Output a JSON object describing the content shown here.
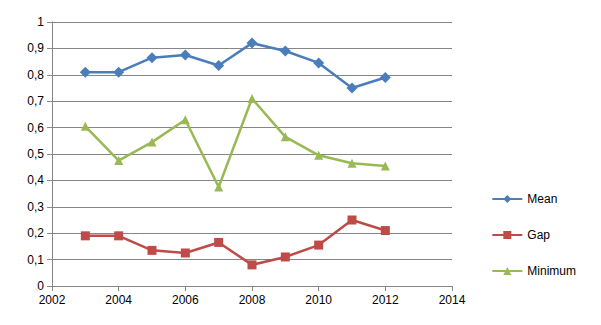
{
  "chart_data": {
    "type": "line",
    "x": [
      2003,
      2004,
      2005,
      2006,
      2007,
      2008,
      2009,
      2010,
      2011,
      2012
    ],
    "series": [
      {
        "name": "Mean",
        "color": "#4a7ebb",
        "marker": "diamond",
        "values": [
          0.81,
          0.81,
          0.865,
          0.875,
          0.835,
          0.92,
          0.89,
          0.845,
          0.75,
          0.79
        ]
      },
      {
        "name": "Gap",
        "color": "#be4b48",
        "marker": "square",
        "values": [
          0.19,
          0.19,
          0.135,
          0.125,
          0.165,
          0.08,
          0.11,
          0.155,
          0.25,
          0.21
        ]
      },
      {
        "name": "Minimum",
        "color": "#98b954",
        "marker": "triangle",
        "values": [
          0.605,
          0.475,
          0.545,
          0.63,
          0.375,
          0.71,
          0.565,
          0.495,
          0.465,
          0.455
        ]
      }
    ],
    "xlim": [
      2002,
      2014
    ],
    "xticks": [
      2002,
      2004,
      2006,
      2008,
      2010,
      2012,
      2014
    ],
    "ylim": [
      0,
      1
    ],
    "yticks": [
      0,
      {
        "value": 0.1,
        "label": "0,1"
      },
      {
        "value": 0.2,
        "label": "0,2"
      },
      {
        "value": 0.3,
        "label": "0,3"
      },
      {
        "value": 0.4,
        "label": "0,4"
      },
      {
        "value": 0.5,
        "label": "0,5"
      },
      {
        "value": 0.6,
        "label": "0,6"
      },
      {
        "value": 0.7,
        "label": "0,7"
      },
      {
        "value": 0.8,
        "label": "0,8"
      },
      {
        "value": 0.9,
        "label": "0,9"
      },
      1
    ],
    "grid": true,
    "legend": "right"
  }
}
